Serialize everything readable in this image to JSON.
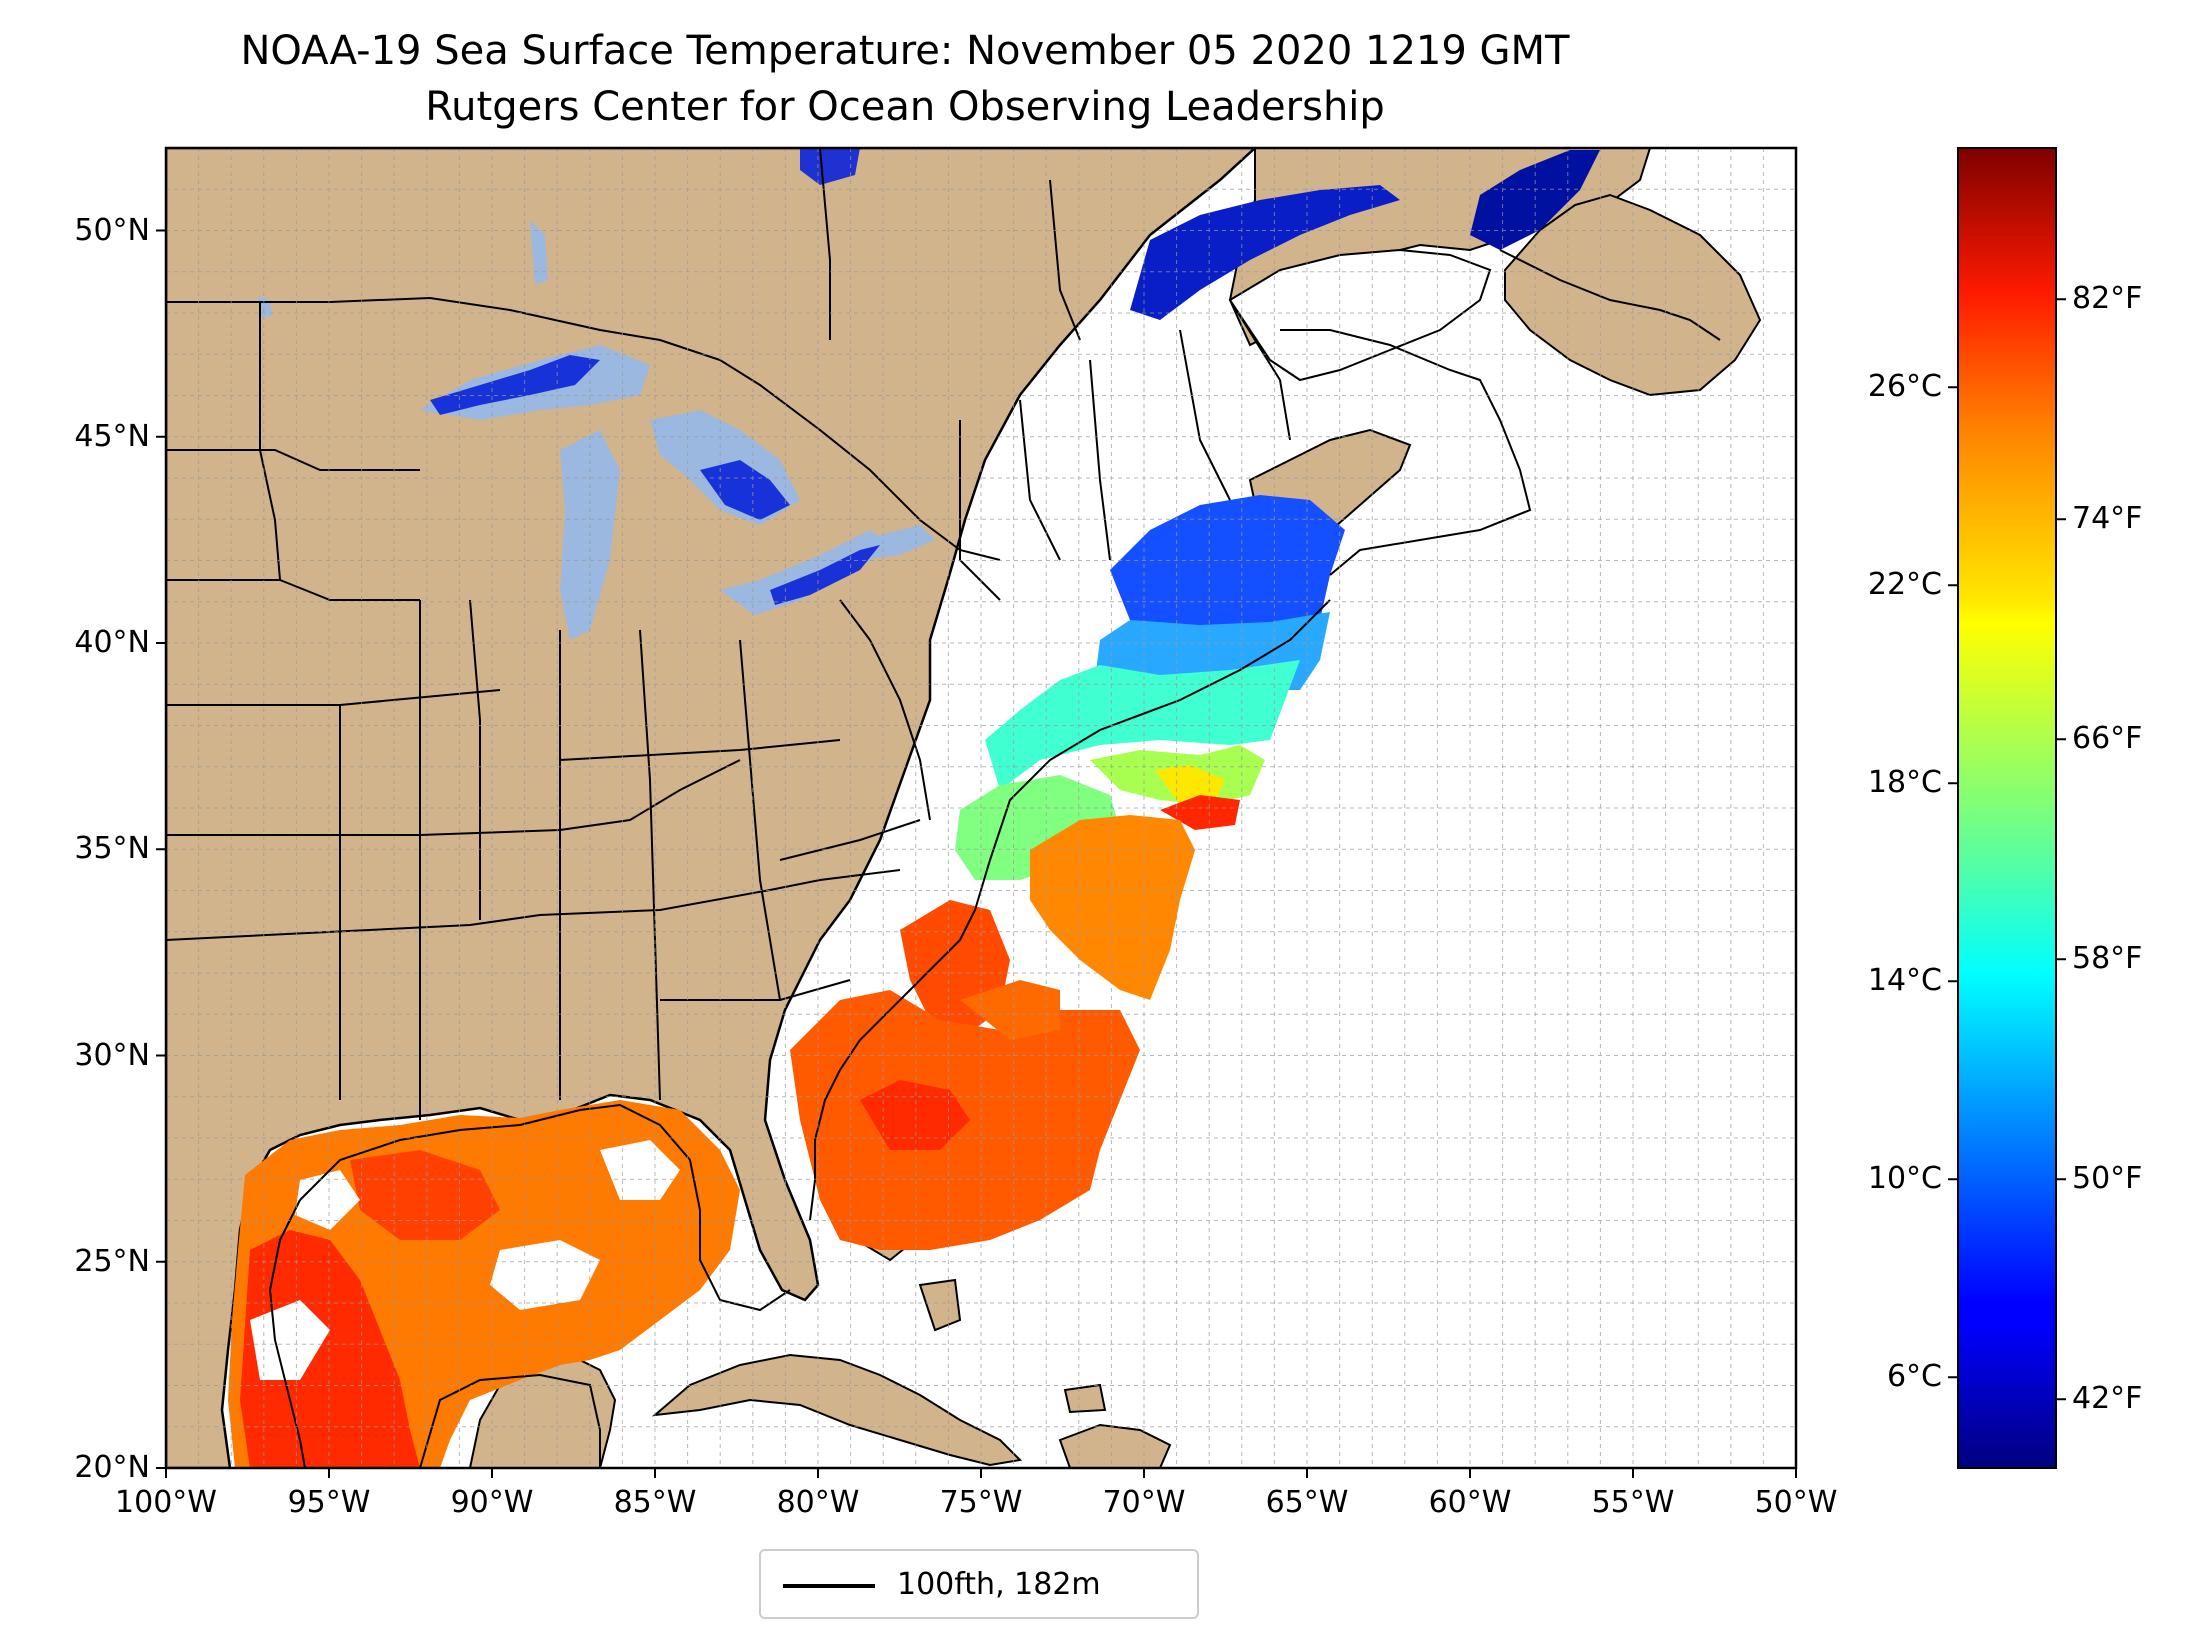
{
  "header": {
    "title": "NOAA-19 Sea Surface Temperature: November 05 2020 1219 GMT",
    "subtitle": "Rutgers Center for Ocean Observing Leadership"
  },
  "map": {
    "lon_range": [
      -100,
      -50
    ],
    "lat_range": [
      20,
      52
    ],
    "lat_ticks": [
      {
        "value": 50,
        "label": "50°N"
      },
      {
        "value": 45,
        "label": "45°N"
      },
      {
        "value": 40,
        "label": "40°N"
      },
      {
        "value": 35,
        "label": "35°N"
      },
      {
        "value": 30,
        "label": "30°N"
      },
      {
        "value": 25,
        "label": "25°N"
      },
      {
        "value": 20,
        "label": "20°N"
      }
    ],
    "lon_ticks": [
      {
        "value": -100,
        "label": "100°W"
      },
      {
        "value": -95,
        "label": "95°W"
      },
      {
        "value": -90,
        "label": "90°W"
      },
      {
        "value": -85,
        "label": "85°W"
      },
      {
        "value": -80,
        "label": "80°W"
      },
      {
        "value": -75,
        "label": "75°W"
      },
      {
        "value": -70,
        "label": "70°W"
      },
      {
        "value": -65,
        "label": "65°W"
      },
      {
        "value": -60,
        "label": "60°W"
      },
      {
        "value": -55,
        "label": "55°W"
      },
      {
        "value": -50,
        "label": "50°W"
      }
    ],
    "gridlines": true,
    "land_color": "#d2b48c",
    "lake_color": "#9ab8e0"
  },
  "legend": {
    "label": "100fth, 182m",
    "placement": "bottom-center"
  },
  "colorbar": {
    "colormap": "jet",
    "range_f": [
      39.5,
      87.5
    ],
    "celsius_ticks": [
      {
        "value": 26,
        "label": "26°C"
      },
      {
        "value": 22,
        "label": "22°C"
      },
      {
        "value": 18,
        "label": "18°C"
      },
      {
        "value": 14,
        "label": "14°C"
      },
      {
        "value": 10,
        "label": "10°C"
      },
      {
        "value": 6,
        "label": "6°C"
      }
    ],
    "fahrenheit_ticks": [
      {
        "value": 82,
        "label": "82°F"
      },
      {
        "value": 74,
        "label": "74°F"
      },
      {
        "value": 66,
        "label": "66°F"
      },
      {
        "value": 58,
        "label": "58°F"
      },
      {
        "value": 50,
        "label": "50°F"
      },
      {
        "value": 42,
        "label": "42°F"
      }
    ]
  }
}
